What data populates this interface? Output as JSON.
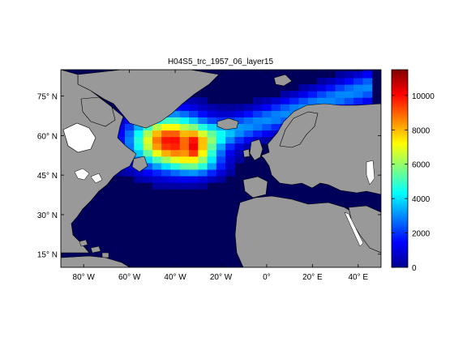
{
  "chart_data": {
    "type": "heatmap",
    "title": "H04S5_trc_1957_06_layer15",
    "x_ticks": [
      {
        "value": -80,
        "label": "80° W"
      },
      {
        "value": -60,
        "label": "60° W"
      },
      {
        "value": -40,
        "label": "40° W"
      },
      {
        "value": -20,
        "label": "20° W"
      },
      {
        "value": 0,
        "label": "0°"
      },
      {
        "value": 20,
        "label": "20° E"
      },
      {
        "value": 40,
        "label": "40° E"
      }
    ],
    "y_ticks": [
      {
        "value": 75,
        "label": "75° N"
      },
      {
        "value": 60,
        "label": "60° N"
      },
      {
        "value": 45,
        "label": "45° N"
      },
      {
        "value": 30,
        "label": "30° N"
      },
      {
        "value": 15,
        "label": "15° N"
      }
    ],
    "xlim": [
      -90,
      50
    ],
    "ylim": [
      10,
      85
    ],
    "colorbar": {
      "colormap": "jet",
      "range": [
        0,
        11500
      ],
      "ticks": [
        0,
        2000,
        4000,
        6000,
        8000,
        10000
      ],
      "tick_labels": [
        "0",
        "2000",
        "4000",
        "6000",
        "8000",
        "10000"
      ]
    },
    "land_color": "#999999",
    "missing_color": "#ffffff"
  }
}
